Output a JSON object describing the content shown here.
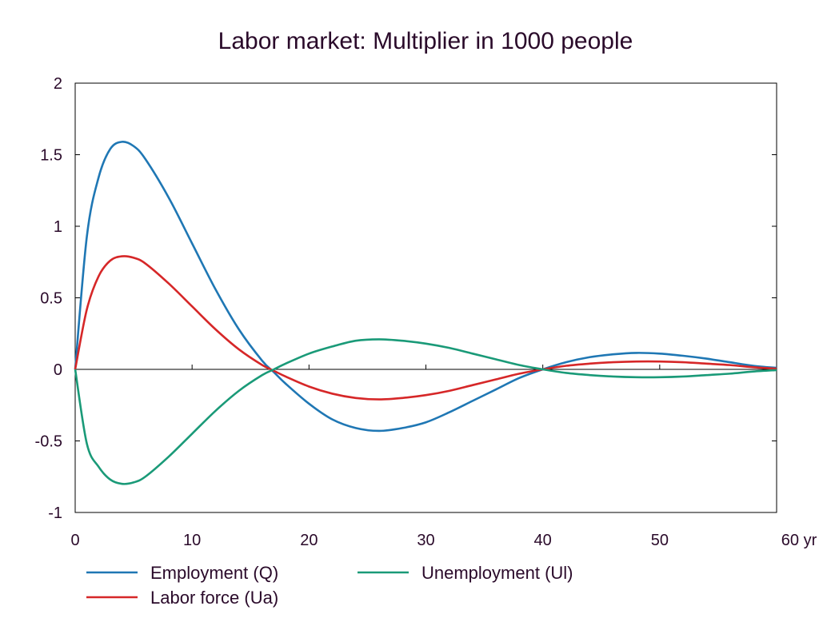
{
  "chart_data": {
    "type": "line",
    "title": "Labor market: Multiplier in 1000 people",
    "xlabel": "",
    "ylabel": "",
    "xlim": [
      0,
      60
    ],
    "ylim": [
      -1,
      2
    ],
    "xticks": [
      0,
      10,
      20,
      30,
      40,
      50,
      60
    ],
    "xtick_labels": [
      "0",
      "10",
      "20",
      "30",
      "40",
      "50",
      "60 yr"
    ],
    "yticks": [
      -1,
      -0.5,
      0,
      0.5,
      1,
      1.5,
      2
    ],
    "ytick_labels": [
      "-1",
      "-0.5",
      "0",
      "0.5",
      "1",
      "1.5",
      "2"
    ],
    "grid": false,
    "legend_position": "bottom",
    "series": [
      {
        "name": "Employment (Q)",
        "color": "#1f77b4",
        "x": [
          0,
          1,
          2,
          3,
          4,
          5,
          6,
          8,
          10,
          12,
          14,
          16,
          17,
          18,
          20,
          22,
          24,
          26,
          28,
          30,
          32,
          34,
          36,
          38,
          40,
          42,
          44,
          46,
          48,
          50,
          52,
          54,
          56,
          58,
          60
        ],
        "y": [
          0,
          0.93,
          1.34,
          1.54,
          1.59,
          1.56,
          1.47,
          1.2,
          0.88,
          0.56,
          0.28,
          0.06,
          -0.02,
          -0.1,
          -0.24,
          -0.35,
          -0.41,
          -0.43,
          -0.41,
          -0.37,
          -0.3,
          -0.22,
          -0.14,
          -0.06,
          0,
          0.05,
          0.085,
          0.105,
          0.115,
          0.11,
          0.095,
          0.075,
          0.05,
          0.025,
          0.01
        ]
      },
      {
        "name": "Labor force (Ua)",
        "color": "#d62728",
        "x": [
          0,
          1,
          2,
          3,
          4,
          5,
          6,
          8,
          10,
          12,
          14,
          16,
          17,
          18,
          20,
          22,
          24,
          26,
          28,
          30,
          32,
          34,
          36,
          38,
          40,
          42,
          44,
          46,
          48,
          50,
          52,
          54,
          56,
          58,
          60
        ],
        "y": [
          0,
          0.42,
          0.65,
          0.76,
          0.79,
          0.78,
          0.74,
          0.6,
          0.44,
          0.28,
          0.14,
          0.03,
          -0.01,
          -0.05,
          -0.12,
          -0.17,
          -0.2,
          -0.21,
          -0.2,
          -0.18,
          -0.15,
          -0.11,
          -0.07,
          -0.03,
          0,
          0.025,
          0.04,
          0.05,
          0.055,
          0.055,
          0.05,
          0.04,
          0.03,
          0.015,
          0.005
        ]
      },
      {
        "name": "Unemployment (Ul)",
        "color": "#1a9a78",
        "x": [
          0,
          1,
          2,
          3,
          4,
          5,
          6,
          8,
          10,
          12,
          14,
          16,
          17,
          18,
          20,
          22,
          24,
          26,
          28,
          30,
          32,
          34,
          36,
          38,
          40,
          42,
          44,
          46,
          48,
          50,
          52,
          54,
          56,
          58,
          60
        ],
        "y": [
          0,
          -0.52,
          -0.68,
          -0.77,
          -0.8,
          -0.79,
          -0.75,
          -0.61,
          -0.45,
          -0.29,
          -0.15,
          -0.04,
          0,
          0.04,
          0.11,
          0.16,
          0.2,
          0.21,
          0.2,
          0.18,
          0.15,
          0.11,
          0.07,
          0.03,
          0,
          -0.025,
          -0.04,
          -0.05,
          -0.055,
          -0.055,
          -0.05,
          -0.04,
          -0.03,
          -0.015,
          -0.005
        ]
      }
    ]
  }
}
